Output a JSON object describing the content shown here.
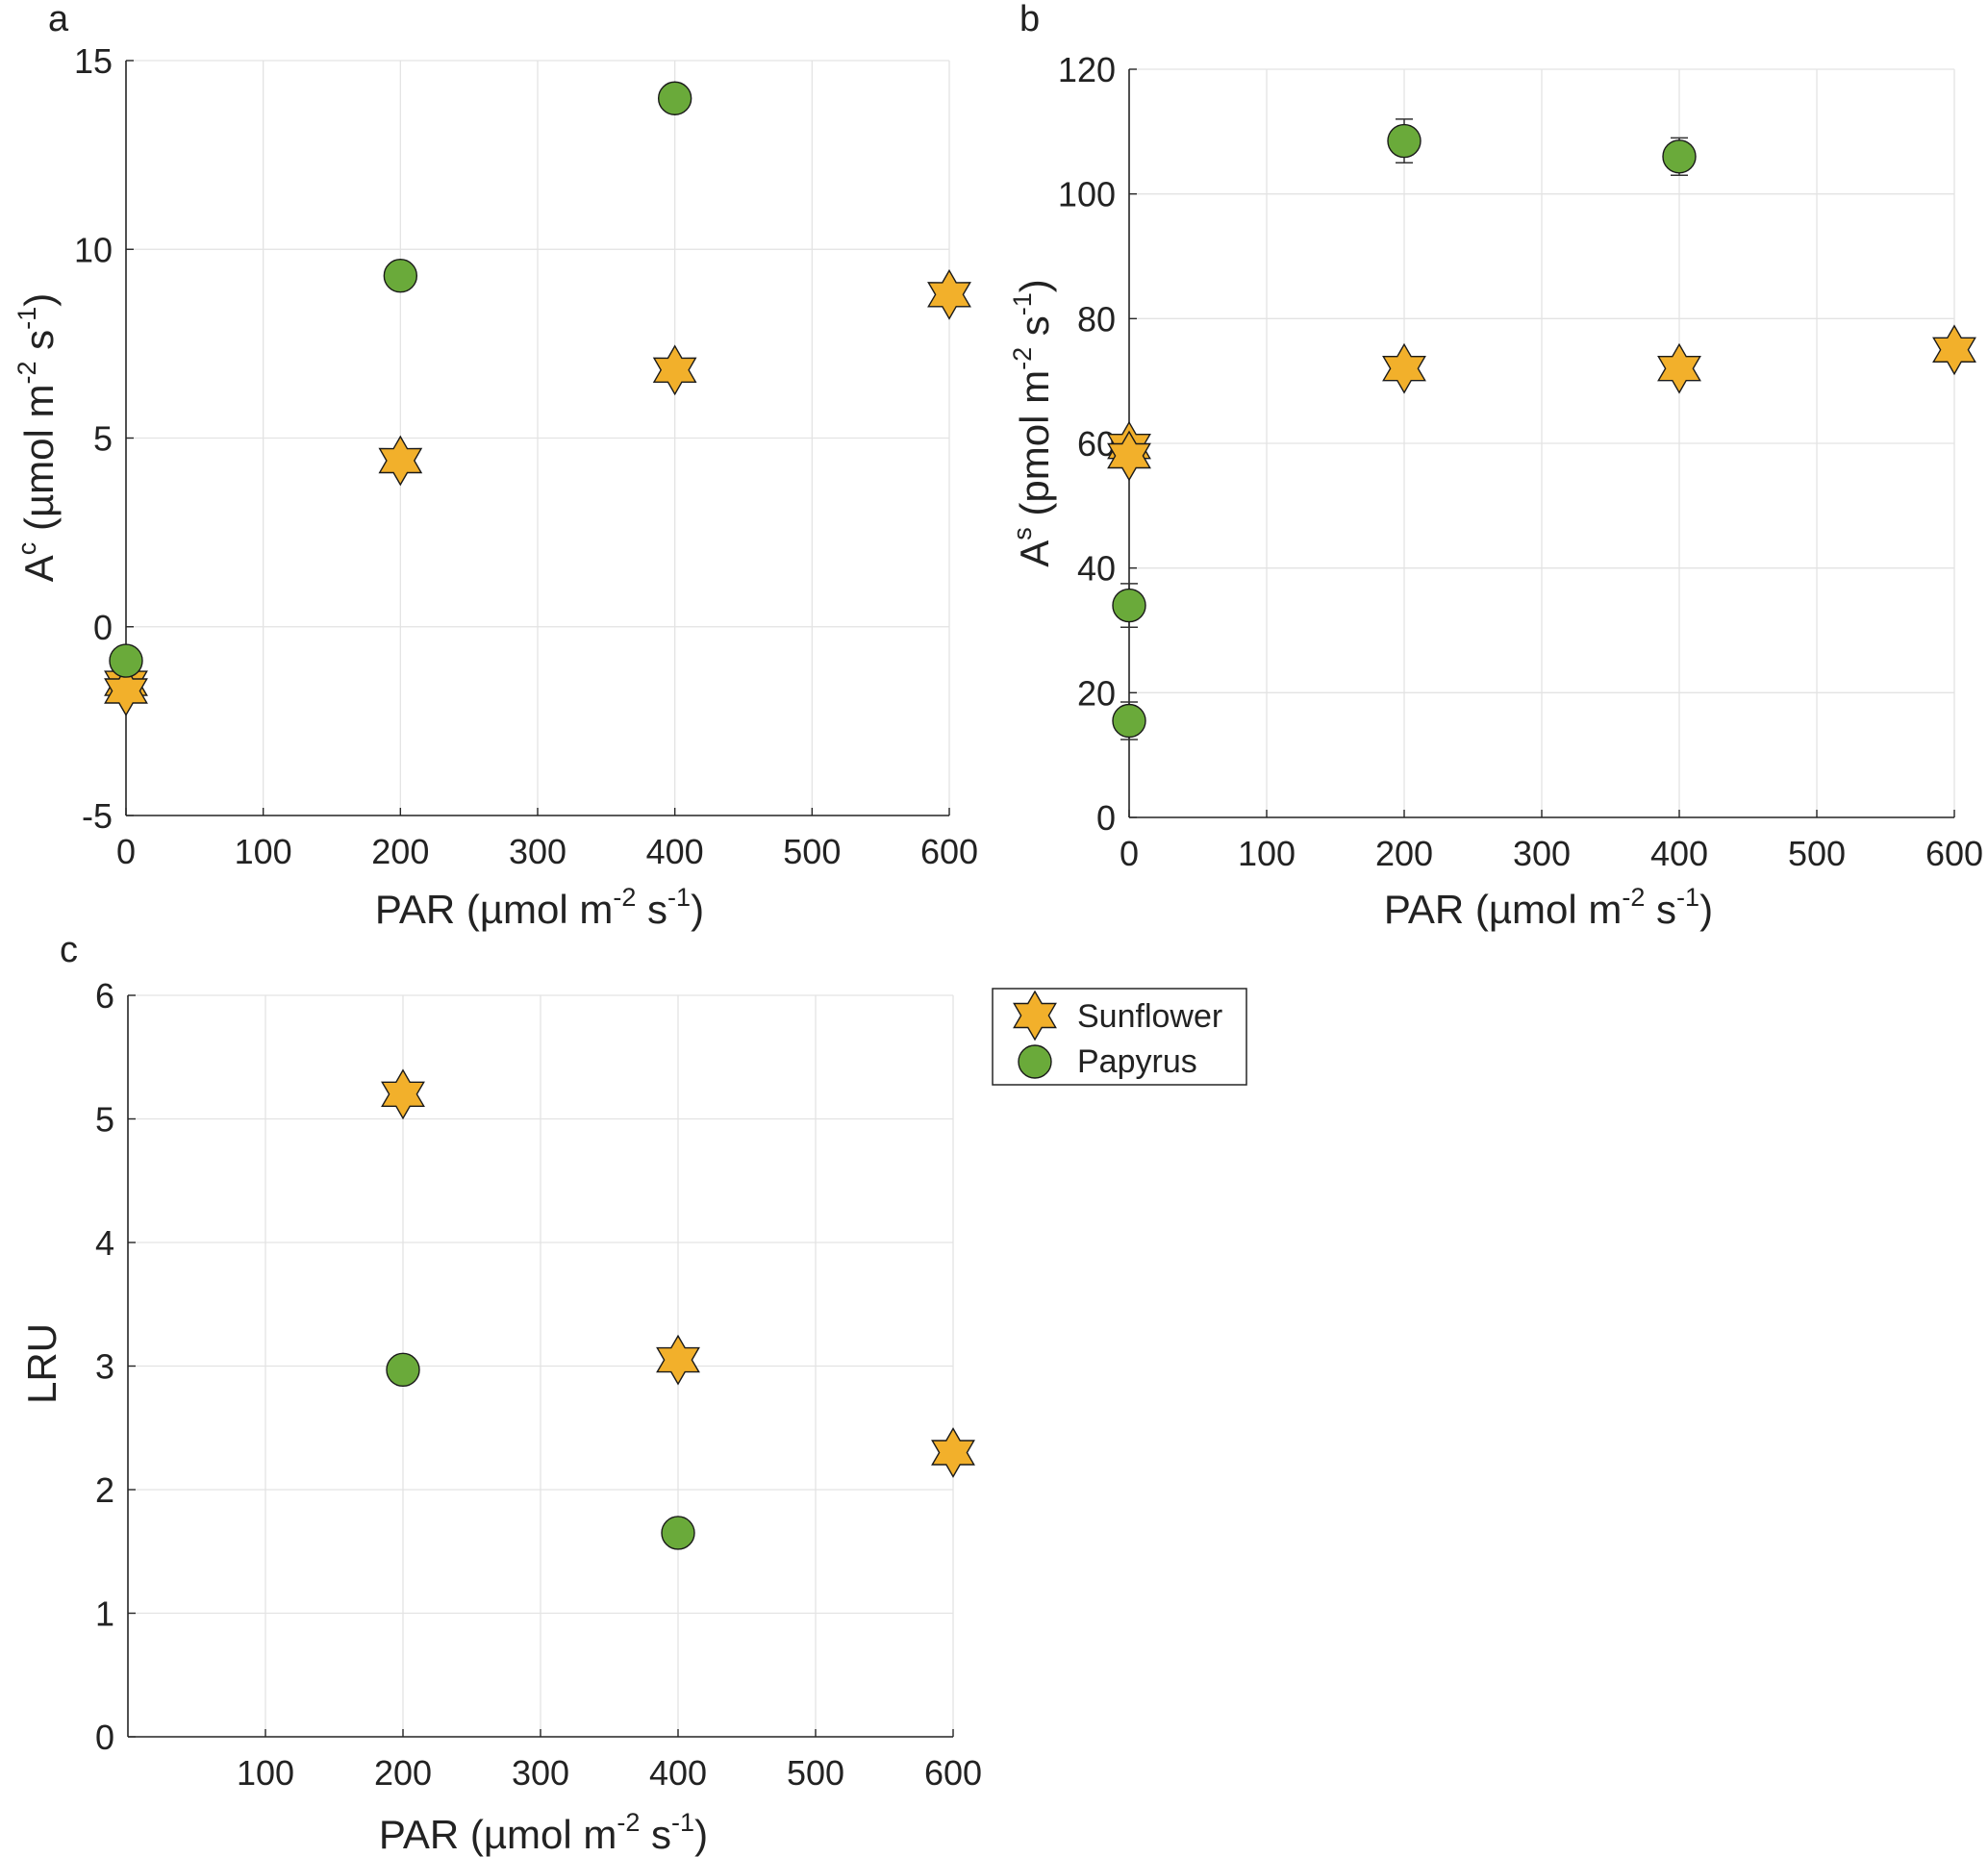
{
  "figure": {
    "colors": {
      "sunflower_fill": "#F2B02B",
      "papyrus_fill": "#6AAA3A",
      "marker_edge": "#1a1a1a",
      "grid": "#e3e3e3",
      "axis": "#262626"
    }
  },
  "chart_data": [
    {
      "panel": "a",
      "type": "scatter",
      "xlabel": {
        "base": "PAR (µmol m",
        "sup1": "-2",
        "mid": " s",
        "sup2": "-1",
        "end": ")"
      },
      "ylabel": {
        "base": "A",
        "sup": "c",
        "rest": " (µmol m",
        "sup1": "-2",
        "mid": " s",
        "sup2": "-1",
        "end": ")"
      },
      "xlim": [
        0,
        600
      ],
      "ylim": [
        -5,
        15
      ],
      "xticks": [
        0,
        100,
        200,
        300,
        400,
        500,
        600
      ],
      "xtick_labels": [
        "0",
        "100",
        "200",
        "300",
        "400",
        "500",
        "600"
      ],
      "yticks": [
        -5,
        0,
        5,
        10,
        15
      ],
      "ytick_labels": [
        "-5",
        "0",
        "5",
        "10",
        "15"
      ],
      "grid": true,
      "series": [
        {
          "name": "Sunflower",
          "marker": "hexagram",
          "points": [
            {
              "x": 0,
              "y": -1.5
            },
            {
              "x": 0,
              "y": -1.7
            },
            {
              "x": 200,
              "y": 4.4
            },
            {
              "x": 400,
              "y": 6.8
            },
            {
              "x": 600,
              "y": 8.8
            }
          ]
        },
        {
          "name": "Papyrus",
          "marker": "circle",
          "points": [
            {
              "x": 0,
              "y": -0.9
            },
            {
              "x": 200,
              "y": 9.3
            },
            {
              "x": 400,
              "y": 14.0
            }
          ]
        }
      ]
    },
    {
      "panel": "b",
      "type": "scatter",
      "xlabel": {
        "base": "PAR (µmol m",
        "sup1": "-2",
        "mid": " s",
        "sup2": "-1",
        "end": ")"
      },
      "ylabel": {
        "base": "A",
        "sup": "s",
        "rest": " (pmol m",
        "sup1": "-2",
        "mid": " s",
        "sup2": "-1",
        "end": ")"
      },
      "xlim": [
        0,
        600
      ],
      "ylim": [
        0,
        120
      ],
      "xticks": [
        0,
        100,
        200,
        300,
        400,
        500,
        600
      ],
      "xtick_labels": [
        "0",
        "100",
        "200",
        "300",
        "400",
        "500",
        "600"
      ],
      "yticks": [
        0,
        20,
        40,
        60,
        80,
        100,
        120
      ],
      "ytick_labels": [
        "0",
        "20",
        "40",
        "60",
        "80",
        "100",
        "120"
      ],
      "grid": true,
      "series": [
        {
          "name": "Sunflower",
          "marker": "hexagram",
          "points": [
            {
              "x": 0,
              "y": 59.5
            },
            {
              "x": 0,
              "y": 58
            },
            {
              "x": 200,
              "y": 72
            },
            {
              "x": 400,
              "y": 72
            },
            {
              "x": 600,
              "y": 75
            }
          ]
        },
        {
          "name": "Papyrus",
          "marker": "circle",
          "points": [
            {
              "x": 0,
              "y": 34,
              "err": 3.5
            },
            {
              "x": 0,
              "y": 15.5,
              "err": 3
            },
            {
              "x": 200,
              "y": 108.5,
              "err": 3.5
            },
            {
              "x": 400,
              "y": 106,
              "err": 3
            }
          ]
        }
      ]
    },
    {
      "panel": "c",
      "type": "scatter",
      "xlabel": {
        "base": "PAR (µmol m",
        "sup1": "-2",
        "mid": " s",
        "sup2": "-1",
        "end": ")"
      },
      "ylabel": {
        "base": "LRU",
        "sup": "",
        "rest": "",
        "sup1": "",
        "mid": "",
        "sup2": "",
        "end": ""
      },
      "xlim": [
        0,
        600
      ],
      "ylim": [
        0,
        6
      ],
      "xticks": [
        100,
        200,
        300,
        400,
        500,
        600
      ],
      "xtick_labels": [
        "100",
        "200",
        "300",
        "400",
        "500",
        "600"
      ],
      "yticks": [
        0,
        1,
        2,
        3,
        4,
        5,
        6
      ],
      "ytick_labels": [
        "0",
        "1",
        "2",
        "3",
        "4",
        "5",
        "6"
      ],
      "grid": true,
      "series": [
        {
          "name": "Sunflower",
          "marker": "hexagram",
          "points": [
            {
              "x": 200,
              "y": 5.2
            },
            {
              "x": 400,
              "y": 3.05
            },
            {
              "x": 600,
              "y": 2.3
            }
          ]
        },
        {
          "name": "Papyrus",
          "marker": "circle",
          "points": [
            {
              "x": 200,
              "y": 2.97
            },
            {
              "x": 400,
              "y": 1.65
            }
          ]
        }
      ]
    }
  ],
  "legend": {
    "placement": "right of panel c",
    "entries": [
      {
        "label": "Sunflower",
        "marker": "hexagram"
      },
      {
        "label": "Papyrus",
        "marker": "circle"
      }
    ]
  }
}
